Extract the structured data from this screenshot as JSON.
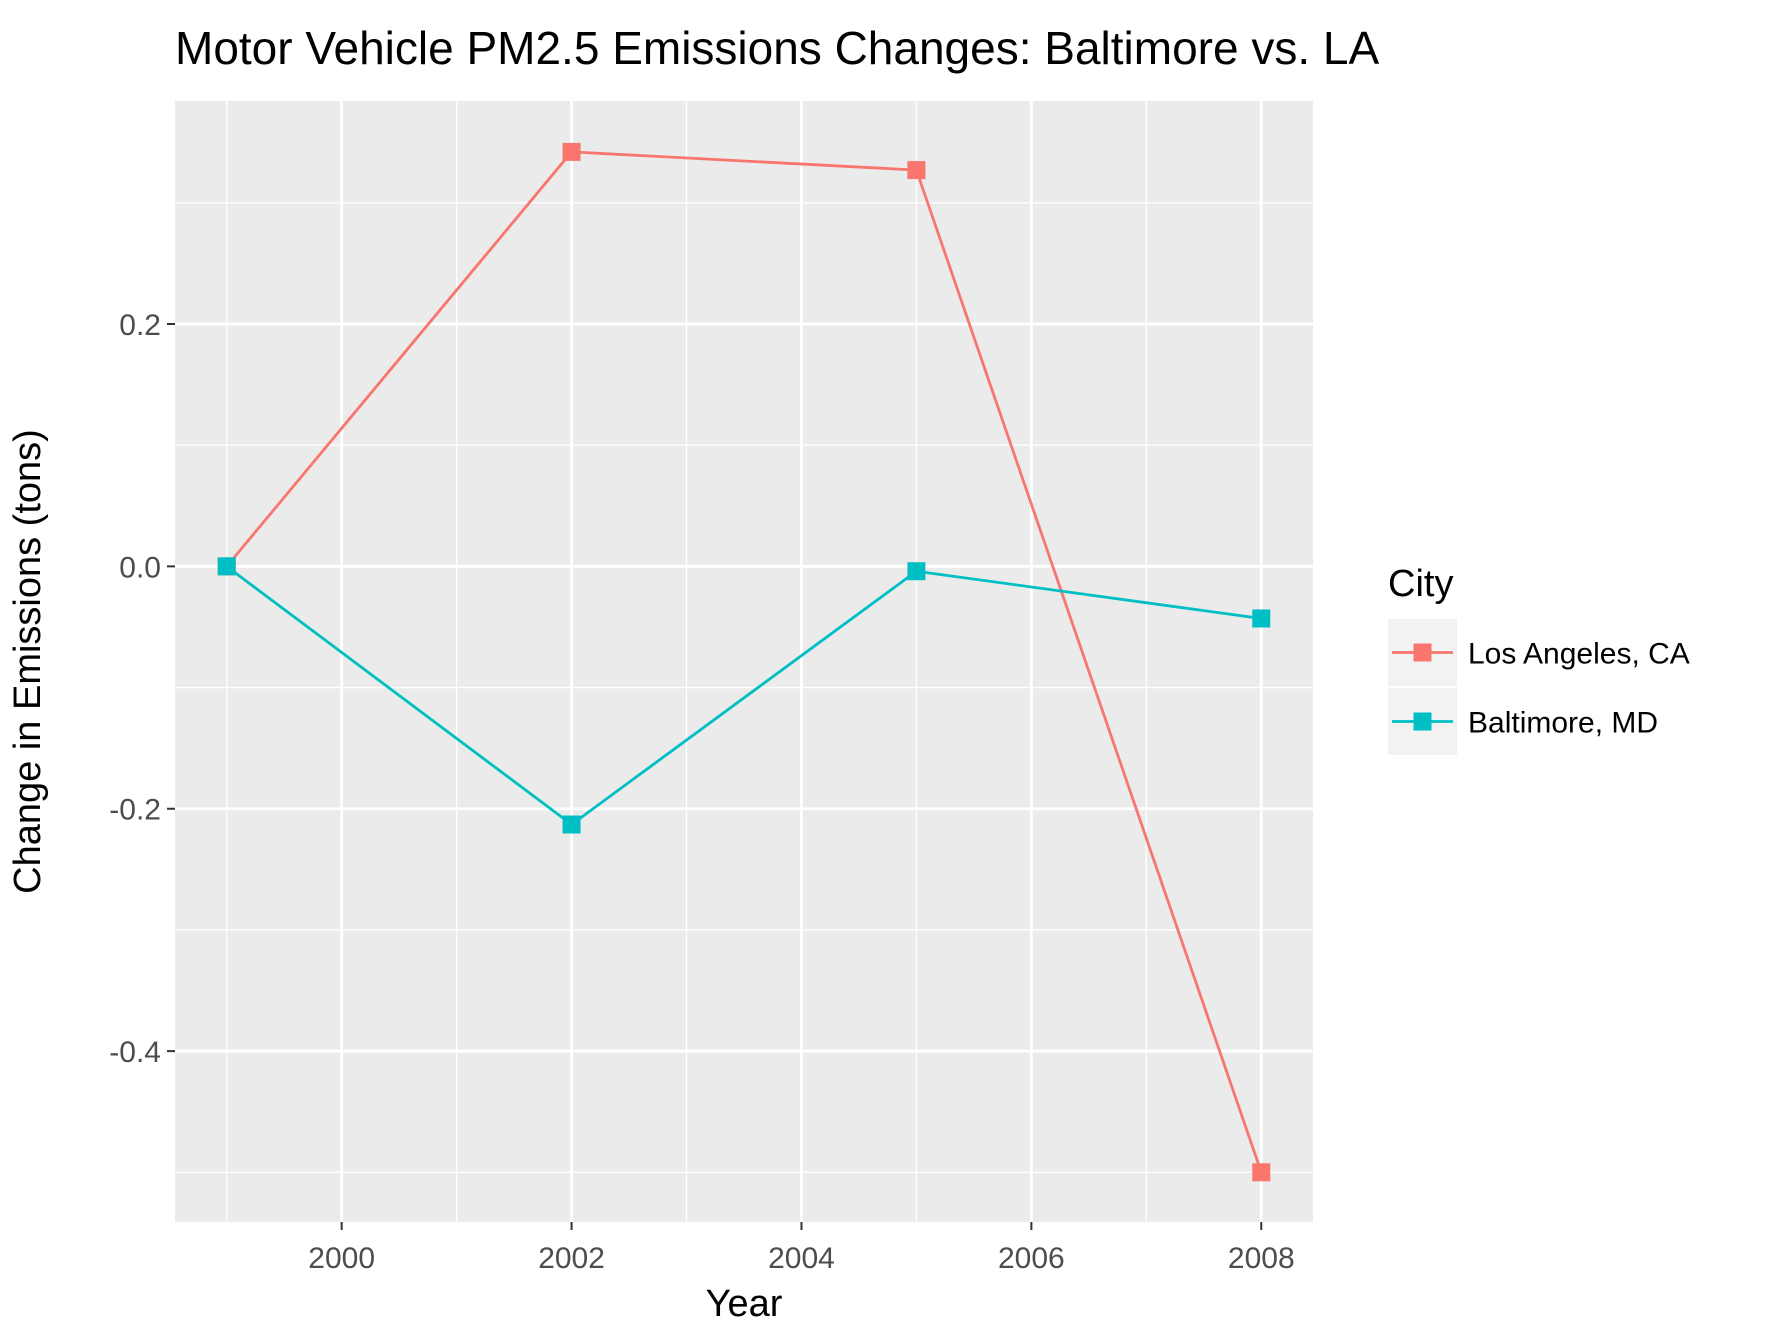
{
  "chart_data": {
    "type": "line",
    "title": "Motor Vehicle PM2.5 Emissions Changes: Baltimore vs. LA",
    "xlabel": "Year",
    "ylabel": "Change in Emissions (tons)",
    "x": [
      1999,
      2002,
      2005,
      2008
    ],
    "xlim": [
      1998.55,
      2008.45
    ],
    "ylim": [
      -0.541,
      0.384
    ],
    "x_ticks": [
      2000,
      2002,
      2004,
      2006,
      2008
    ],
    "x_tick_labels": [
      "2000",
      "2002",
      "2004",
      "2006",
      "2008"
    ],
    "y_ticks": [
      -0.4,
      -0.2,
      0.0,
      0.2
    ],
    "y_tick_labels": [
      "-0.4",
      "-0.2",
      "0.0",
      "0.2"
    ],
    "grid": true,
    "legend": {
      "title": "City",
      "placement": "right"
    },
    "series": [
      {
        "name": "Los Angeles, CA",
        "color": "#F8766D",
        "marker": "square",
        "values": [
          0.0,
          0.342,
          0.327,
          -0.5
        ]
      },
      {
        "name": "Baltimore, MD",
        "color": "#00BFC4",
        "marker": "square",
        "values": [
          0.0,
          -0.213,
          -0.004,
          -0.043
        ]
      }
    ]
  }
}
